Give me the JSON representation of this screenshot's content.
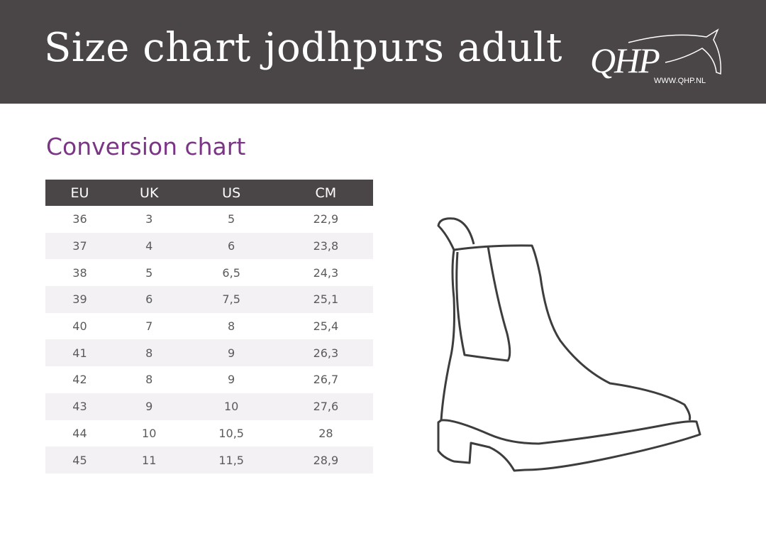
{
  "header": {
    "title": "Size chart jodhpurs adult",
    "logo_text": "QHP",
    "logo_url": "WWW.QHP.NL"
  },
  "section": {
    "title": "Conversion chart"
  },
  "table": {
    "columns": [
      "EU",
      "UK",
      "US",
      "CM"
    ],
    "rows": [
      [
        "36",
        "3",
        "5",
        "22,9"
      ],
      [
        "37",
        "4",
        "6",
        "23,8"
      ],
      [
        "38",
        "5",
        "6,5",
        "24,3"
      ],
      [
        "39",
        "6",
        "7,5",
        "25,1"
      ],
      [
        "40",
        "7",
        "8",
        "25,4"
      ],
      [
        "41",
        "8",
        "9",
        "26,3"
      ],
      [
        "42",
        "8",
        "9",
        "26,7"
      ],
      [
        "43",
        "9",
        "10",
        "27,6"
      ],
      [
        "44",
        "10",
        "10,5",
        "28"
      ],
      [
        "45",
        "11",
        "11,5",
        "28,9"
      ]
    ]
  },
  "illustration": {
    "icon": "jodhpur-boot-icon"
  },
  "colors": {
    "banner": "#4a4546",
    "accent": "#7b3585",
    "row_alt": "#f3f1f4"
  }
}
